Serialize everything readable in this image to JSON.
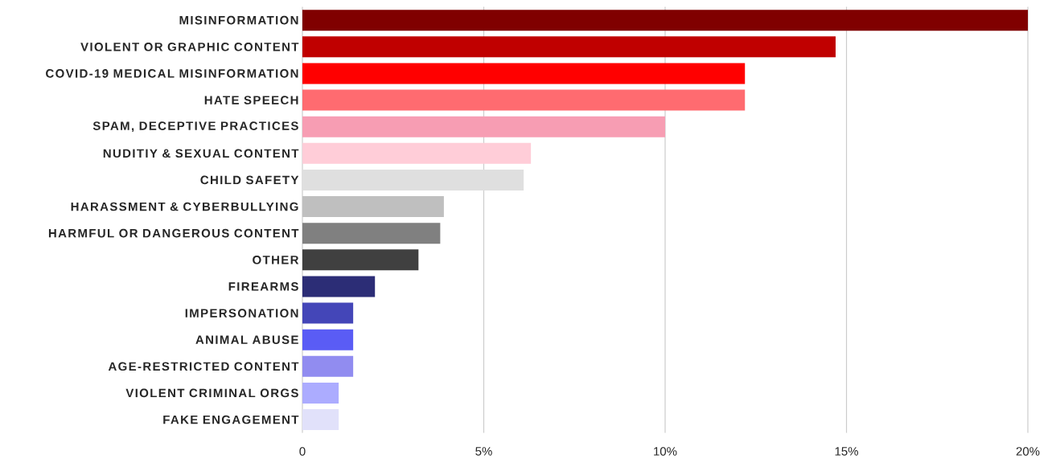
{
  "chart_data": {
    "type": "bar",
    "orientation": "horizontal",
    "categories": [
      "MISINFORMATION",
      "VIOLENT OR GRAPHIC CONTENT",
      "COVID-19 MEDICAL MISINFORMATION",
      "HATE SPEECH",
      "SPAM, DECEPTIVE PRACTICES",
      "NUDITIY & SEXUAL CONTENT",
      "CHILD SAFETY",
      "HARASSMENT & CYBERBULLYING",
      "HARMFUL OR DANGEROUS CONTENT",
      "OTHER",
      "FIREARMS",
      "IMPERSONATION",
      "ANIMAL ABUSE",
      "AGE-RESTRICTED CONTENT",
      "VIOLENT CRIMINAL ORGS",
      "FAKE ENGAGEMENT"
    ],
    "values": [
      20.0,
      14.7,
      12.2,
      12.2,
      10.0,
      6.3,
      6.1,
      3.9,
      3.8,
      3.2,
      2.0,
      1.4,
      1.4,
      1.4,
      1.0,
      1.0
    ],
    "colors": [
      "#800000",
      "#c00000",
      "#ff0000",
      "#ff6b70",
      "#f79db3",
      "#ffcdd8",
      "#dfdfdf",
      "#bfbfbf",
      "#808080",
      "#404040",
      "#2c2d76",
      "#4446b8",
      "#5a5cf5",
      "#918cf0",
      "#acacff",
      "#e1e1fa"
    ],
    "xlim": [
      0,
      20
    ],
    "xticks": [
      0,
      {
        "value": 5,
        "label": "5%"
      },
      {
        "value": 10,
        "label": "10%"
      },
      {
        "value": 15,
        "label": "15%"
      },
      {
        "value": 20,
        "label": "20%"
      }
    ],
    "grid": "x"
  }
}
